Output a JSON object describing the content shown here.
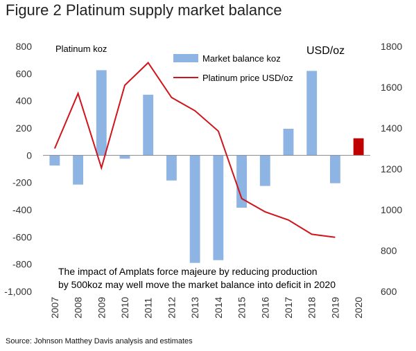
{
  "figure_title": "Figure 2 Platinum supply market balance",
  "source": "Source: Johnson Matthey Davis analysis and estimates",
  "chart_data": {
    "type": "bar+line",
    "categories": [
      "2007",
      "2008",
      "2009",
      "2010",
      "2011",
      "2012",
      "2013",
      "2014",
      "2015",
      "2016",
      "2017",
      "2018",
      "2019",
      "2020"
    ],
    "series": [
      {
        "name": "Market balance koz",
        "type": "bar",
        "axis": "left",
        "color": "#8db4e2",
        "values": [
          -75,
          -215,
          625,
          -25,
          445,
          -185,
          -790,
          -770,
          -385,
          -225,
          195,
          620,
          -205,
          null
        ]
      },
      {
        "type": "bar",
        "axis": "left",
        "color": "#c00000",
        "values": [
          null,
          null,
          null,
          null,
          null,
          null,
          null,
          null,
          null,
          null,
          null,
          null,
          null,
          125
        ]
      },
      {
        "name": "Platinum price USD/oz",
        "type": "line",
        "axis": "right",
        "color": "#d0141b",
        "values": [
          1300,
          1570,
          1205,
          1610,
          1720,
          1550,
          1485,
          1385,
          1055,
          990,
          950,
          880,
          865,
          null
        ]
      }
    ],
    "left_axis": {
      "label": "Platinum koz",
      "min": -1000,
      "max": 800,
      "step": 200,
      "tick_labels": [
        "-1,000",
        "-800",
        "-600",
        "-400",
        "-200",
        "0",
        "200",
        "400",
        "600",
        "800"
      ]
    },
    "right_axis": {
      "label": "USD/oz",
      "min": 600,
      "max": 1800,
      "step": 200,
      "tick_labels": [
        "600",
        "800",
        "1000",
        "1200",
        "1400",
        "1600",
        "1800"
      ]
    },
    "legend_position": "top-center",
    "grid": false,
    "annotation": [
      "The impact of Amplats force majeure by reducing production",
      "by  500koz may well move the market balance into deficit in 2020"
    ]
  }
}
